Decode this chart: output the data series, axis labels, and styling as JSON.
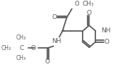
{
  "bg_color": "#ffffff",
  "bc": "#5a5a5a",
  "bw": 1.3,
  "figsize": [
    1.6,
    0.98
  ],
  "dpi": 100,
  "xlim": [
    0,
    160
  ],
  "ylim": [
    0,
    98
  ]
}
